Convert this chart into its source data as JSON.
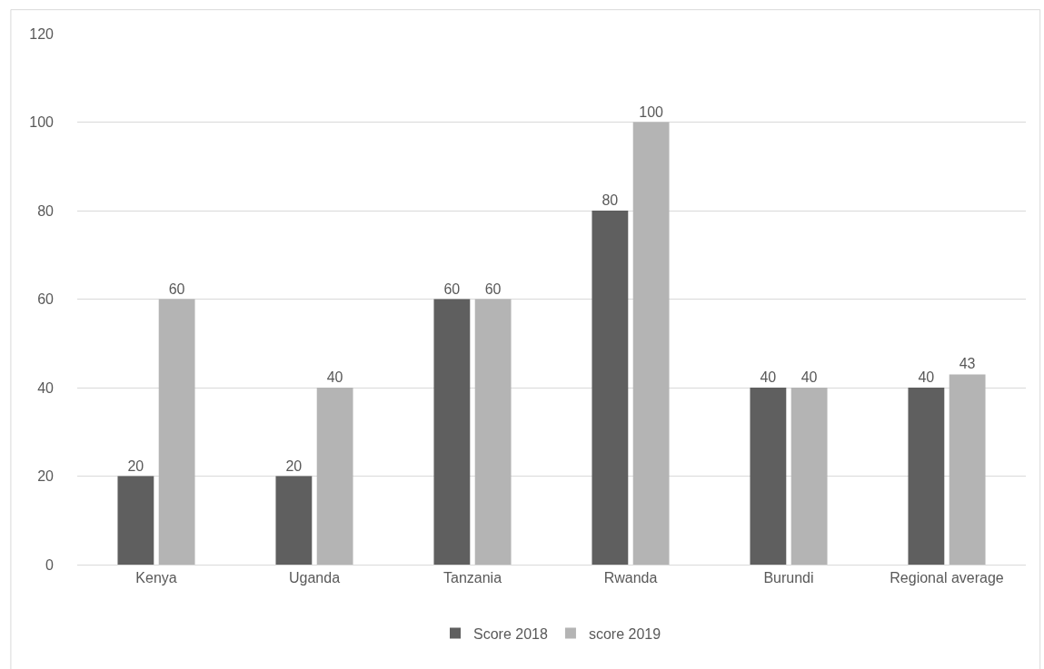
{
  "chart_data": {
    "type": "bar",
    "categories": [
      "Kenya",
      "Uganda",
      "Tanzania",
      "Rwanda",
      "Burundi",
      "Regional average"
    ],
    "series": [
      {
        "name": "Score 2018",
        "color": "#5f5f5f",
        "values": [
          20,
          20,
          60,
          80,
          40,
          40
        ]
      },
      {
        "name": "score 2019",
        "color": "#b4b4b4",
        "values": [
          60,
          40,
          60,
          100,
          40,
          43
        ]
      }
    ],
    "ylim": [
      0,
      120
    ],
    "yticks": [
      0,
      20,
      40,
      60,
      80,
      100,
      120
    ],
    "grid": "y",
    "legend": "bottom",
    "data_labels": true
  }
}
